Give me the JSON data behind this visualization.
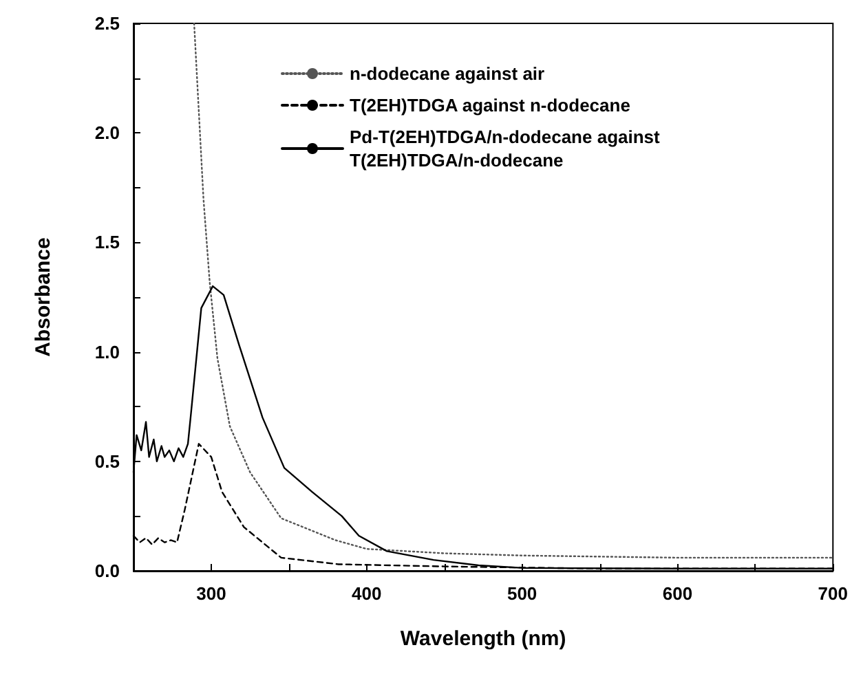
{
  "chart_data": {
    "type": "line",
    "xlabel": "Wavelength (nm)",
    "ylabel": "Absorbance",
    "xlim": [
      250,
      700
    ],
    "ylim": [
      0,
      2.5
    ],
    "xticks": [
      {
        "value": 250,
        "label": null
      },
      300,
      {
        "value": 350,
        "label": null
      },
      400,
      {
        "value": 450,
        "label": null
      },
      500,
      {
        "value": 550,
        "label": null
      },
      600,
      {
        "value": 650,
        "label": null
      },
      700
    ],
    "yticks": [
      {
        "value": 0,
        "label": "0.0"
      },
      {
        "value": 0.25,
        "label": null
      },
      {
        "value": 0.5,
        "label": "0.5"
      },
      {
        "value": 0.75,
        "label": null
      },
      {
        "value": 1,
        "label": "1.0"
      },
      {
        "value": 1.25,
        "label": null
      },
      {
        "value": 1.5,
        "label": "1.5"
      },
      {
        "value": 1.75,
        "label": null
      },
      {
        "value": 2,
        "label": "2.0"
      },
      {
        "value": 2.25,
        "label": null
      },
      {
        "value": 2.5,
        "label": "2.5"
      }
    ],
    "grid": false,
    "legend": "top right",
    "marker": "none",
    "series": [
      {
        "name": "n-dodecane against air",
        "color": "#555555",
        "line_style": "dotted",
        "x": [
          289,
          295,
          299,
          304,
          312,
          325,
          345,
          380,
          400,
          425,
          450,
          500,
          600,
          700
        ],
        "values": [
          2.5,
          1.7,
          1.32,
          0.97,
          0.66,
          0.45,
          0.24,
          0.14,
          0.1,
          0.09,
          0.08,
          0.07,
          0.06,
          0.06
        ]
      },
      {
        "name": "T(2EH)TDGA against n-dodecane",
        "color": "#000000",
        "line_style": "dashed",
        "x": [
          250,
          254,
          258,
          262,
          266,
          270,
          274,
          278,
          283,
          292,
          300,
          307,
          321,
          345,
          382,
          450,
          550,
          700
        ],
        "values": [
          0.16,
          0.13,
          0.15,
          0.12,
          0.15,
          0.13,
          0.14,
          0.13,
          0.28,
          0.58,
          0.52,
          0.36,
          0.2,
          0.06,
          0.03,
          0.02,
          0.01,
          0.01
        ]
      },
      {
        "name": "Pd-T(2EH)TDGA/n-dodecane against T(2EH)TDGA/n-dodecane",
        "color": "#000000",
        "line_style": "solid",
        "x": [
          250,
          252,
          255,
          258,
          260,
          263,
          265,
          268,
          270,
          273,
          276,
          279,
          282,
          285,
          287,
          293.6,
          301,
          308,
          318,
          333,
          347,
          365,
          384,
          395,
          413,
          443,
          472,
          501,
          600,
          700
        ],
        "values": [
          0.45,
          0.62,
          0.55,
          0.68,
          0.52,
          0.6,
          0.5,
          0.57,
          0.52,
          0.55,
          0.5,
          0.56,
          0.52,
          0.58,
          0.72,
          1.2,
          1.3,
          1.26,
          1.03,
          0.7,
          0.47,
          0.36,
          0.25,
          0.16,
          0.09,
          0.05,
          0.025,
          0.013,
          0.01,
          0.01
        ]
      }
    ]
  }
}
